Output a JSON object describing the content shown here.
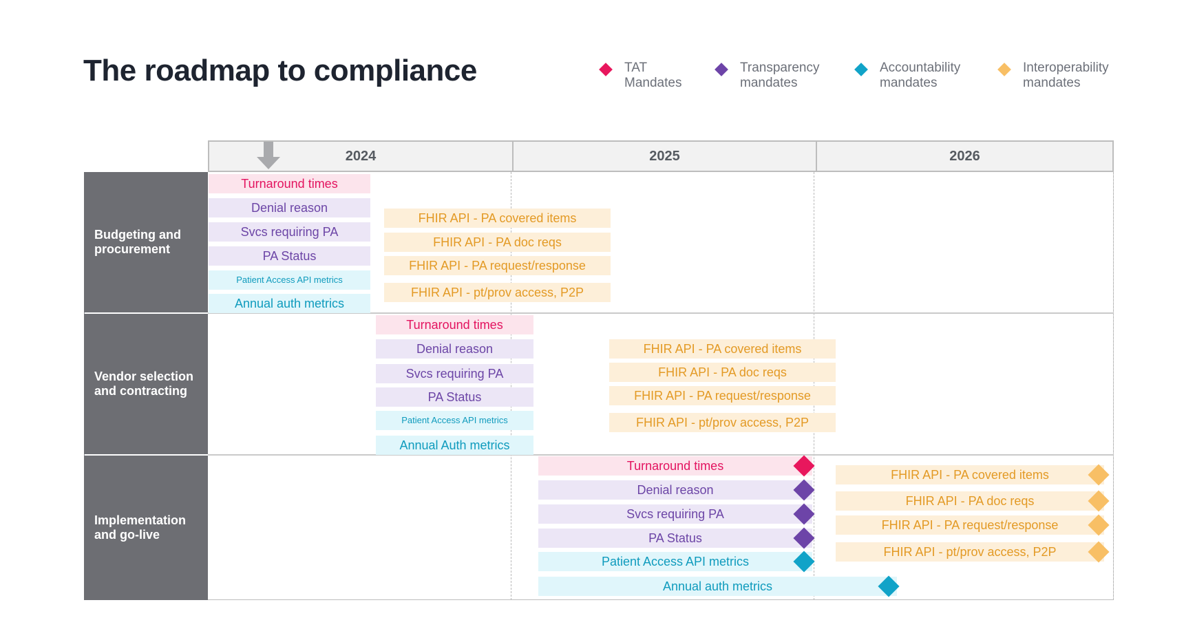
{
  "title": "The roadmap to compliance",
  "legend": [
    {
      "label": "TAT\nMandates",
      "color": "#e8175d",
      "icon": "diamond-icon"
    },
    {
      "label": "Transparency\nmandates",
      "color": "#6d44a8",
      "icon": "diamond-icon"
    },
    {
      "label": "Accountability\nmandates",
      "color": "#11a3c8",
      "icon": "diamond-icon"
    },
    {
      "label": "Interoperability\nmandates",
      "color": "#f8bf65",
      "icon": "diamond-icon"
    }
  ],
  "years": [
    "2024",
    "2025",
    "2026"
  ],
  "current_marker_icon": "down-arrow-icon",
  "phases": [
    {
      "label": "Budgeting and\nprocurement",
      "items": [
        {
          "label": "Turnaround times",
          "category": "tat"
        },
        {
          "label": "Denial reason",
          "category": "transparency"
        },
        {
          "label": "Svcs requiring PA",
          "category": "transparency"
        },
        {
          "label": "PA Status",
          "category": "transparency"
        },
        {
          "label": "Patient Access API metrics",
          "category": "accountability"
        },
        {
          "label": "Annual auth metrics",
          "category": "accountability"
        },
        {
          "label": "FHIR API - PA covered items",
          "category": "interoperability"
        },
        {
          "label": "FHIR API - PA doc reqs",
          "category": "interoperability"
        },
        {
          "label": "FHIR API - PA request/response",
          "category": "interoperability"
        },
        {
          "label": "FHIR API - pt/prov access, P2P",
          "category": "interoperability"
        }
      ]
    },
    {
      "label": "Vendor selection\nand contracting",
      "items": [
        {
          "label": "Turnaround times",
          "category": "tat"
        },
        {
          "label": "Denial reason",
          "category": "transparency"
        },
        {
          "label": "Svcs requiring PA",
          "category": "transparency"
        },
        {
          "label": "PA Status",
          "category": "transparency"
        },
        {
          "label": "Patient Access API metrics",
          "category": "accountability"
        },
        {
          "label": "Annual Auth metrics",
          "category": "accountability"
        },
        {
          "label": "FHIR API - PA covered items",
          "category": "interoperability"
        },
        {
          "label": "FHIR API - PA doc reqs",
          "category": "interoperability"
        },
        {
          "label": "FHIR API - PA request/response",
          "category": "interoperability"
        },
        {
          "label": "FHIR API - pt/prov access, P2P",
          "category": "interoperability"
        }
      ]
    },
    {
      "label": "Implementation\nand go-live",
      "items": [
        {
          "label": "Turnaround times",
          "category": "tat"
        },
        {
          "label": "Denial reason",
          "category": "transparency"
        },
        {
          "label": "Svcs requiring PA",
          "category": "transparency"
        },
        {
          "label": "PA Status",
          "category": "transparency"
        },
        {
          "label": "Patient Access API metrics",
          "category": "accountability"
        },
        {
          "label": "Annual auth metrics",
          "category": "accountability"
        },
        {
          "label": "FHIR API - PA covered items",
          "category": "interoperability"
        },
        {
          "label": "FHIR API - PA doc reqs",
          "category": "interoperability"
        },
        {
          "label": "FHIR API - PA request/response",
          "category": "interoperability"
        },
        {
          "label": "FHIR API - pt/prov access, P2P",
          "category": "interoperability"
        }
      ]
    }
  ]
}
